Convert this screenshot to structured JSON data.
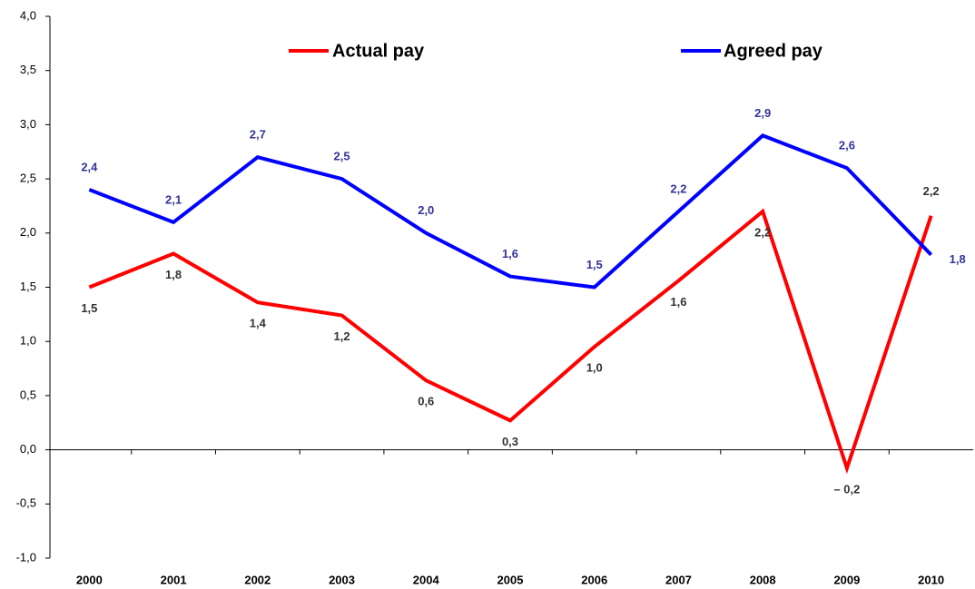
{
  "chart_data": {
    "type": "line",
    "categories": [
      "2000",
      "2001",
      "2002",
      "2003",
      "2004",
      "2005",
      "2006",
      "2007",
      "2008",
      "2009",
      "2010"
    ],
    "series": [
      {
        "name": "Actual pay",
        "color": "#ff0000",
        "values": [
          1.5,
          1.81,
          1.36,
          1.24,
          0.64,
          0.27,
          0.95,
          1.56,
          2.2,
          -0.17,
          2.16
        ],
        "value_labels": [
          "1,5",
          "1,8",
          "1,4",
          "1,2",
          "0,6",
          "0,3",
          "1,0",
          "1,6",
          "2,2",
          "– 0,2",
          "2,2"
        ]
      },
      {
        "name": "Agreed pay",
        "color": "#0000ff",
        "values": [
          2.4,
          2.1,
          2.7,
          2.5,
          2.0,
          1.6,
          1.5,
          2.2,
          2.9,
          2.6,
          1.8
        ],
        "value_labels": [
          "2,4",
          "2,1",
          "2,7",
          "2,5",
          "2,0",
          "1,6",
          "1,5",
          "2,2",
          "2,9",
          "2,6",
          "1,8"
        ]
      }
    ],
    "ylim": [
      -1,
      4
    ],
    "yticks": [
      {
        "value": -1,
        "label": "-1,0"
      },
      {
        "value": -0.5,
        "label": "-0,5"
      },
      {
        "value": 0,
        "label": "0,0"
      },
      {
        "value": 0.5,
        "label": "0,5"
      },
      {
        "value": 1,
        "label": "1,0"
      },
      {
        "value": 1.5,
        "label": "1,5"
      },
      {
        "value": 2,
        "label": "2,0"
      },
      {
        "value": 2.5,
        "label": "2,5"
      },
      {
        "value": 3,
        "label": "3,0"
      },
      {
        "value": 3.5,
        "label": "3,5"
      },
      {
        "value": 4,
        "label": "4,0"
      }
    ],
    "grid": false,
    "legend": "top"
  }
}
